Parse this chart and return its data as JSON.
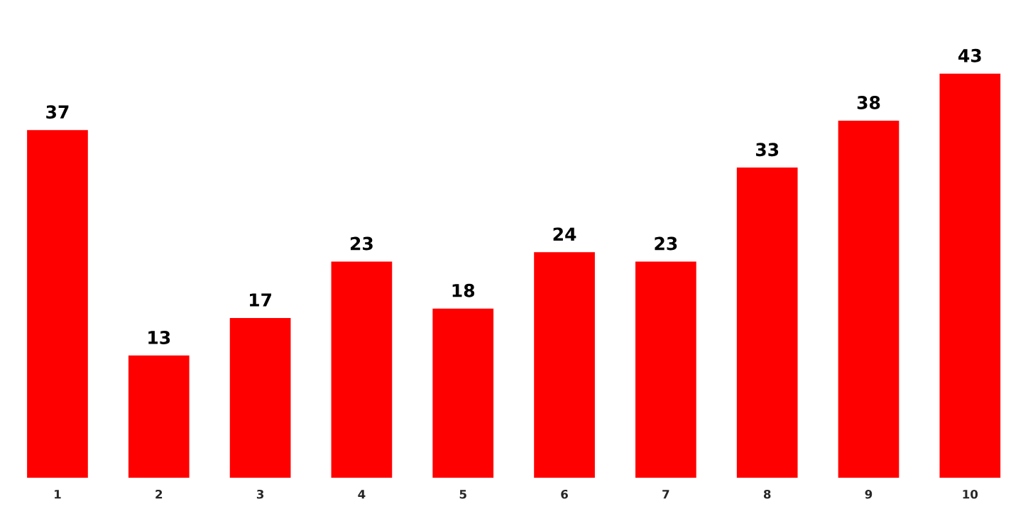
{
  "chart_data": {
    "type": "bar",
    "categories": [
      "1",
      "2",
      "3",
      "4",
      "5",
      "6",
      "7",
      "8",
      "9",
      "10"
    ],
    "values": [
      37,
      13,
      17,
      23,
      18,
      24,
      23,
      33,
      38,
      43
    ],
    "color": "#ff0000",
    "data_labels": true,
    "grid": false,
    "legend": false
  }
}
